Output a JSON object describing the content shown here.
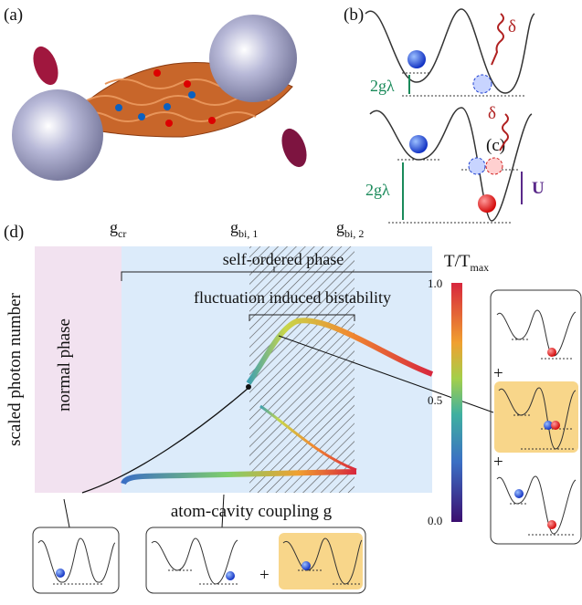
{
  "panels": {
    "a": {
      "label": "(a)"
    },
    "b": {
      "label": "(b)",
      "delta": "δ",
      "splitting": "2gλ"
    },
    "c": {
      "label": "(c)",
      "delta": "δ",
      "splitting": "2gλ",
      "interaction": "U"
    },
    "d": {
      "label": "(d)",
      "g_cr": {
        "main": "g",
        "sub": "cr"
      },
      "g_bi1": {
        "main": "g",
        "sub": "bi, 1"
      },
      "g_bi2": {
        "main": "g",
        "sub": "bi, 2"
      },
      "self_ordered": "self-ordered phase",
      "bistability": "fluctuation induced bistability",
      "normal_phase": "normal phase",
      "y_label": "scaled photon number",
      "x_label": "atom-cavity coupling g",
      "colorbar": {
        "main": "T/T",
        "sub": "max",
        "ticks": [
          "1.0",
          "0.5",
          "0.0"
        ]
      },
      "plus_signs": [
        "+",
        "+",
        "+"
      ]
    }
  }
}
